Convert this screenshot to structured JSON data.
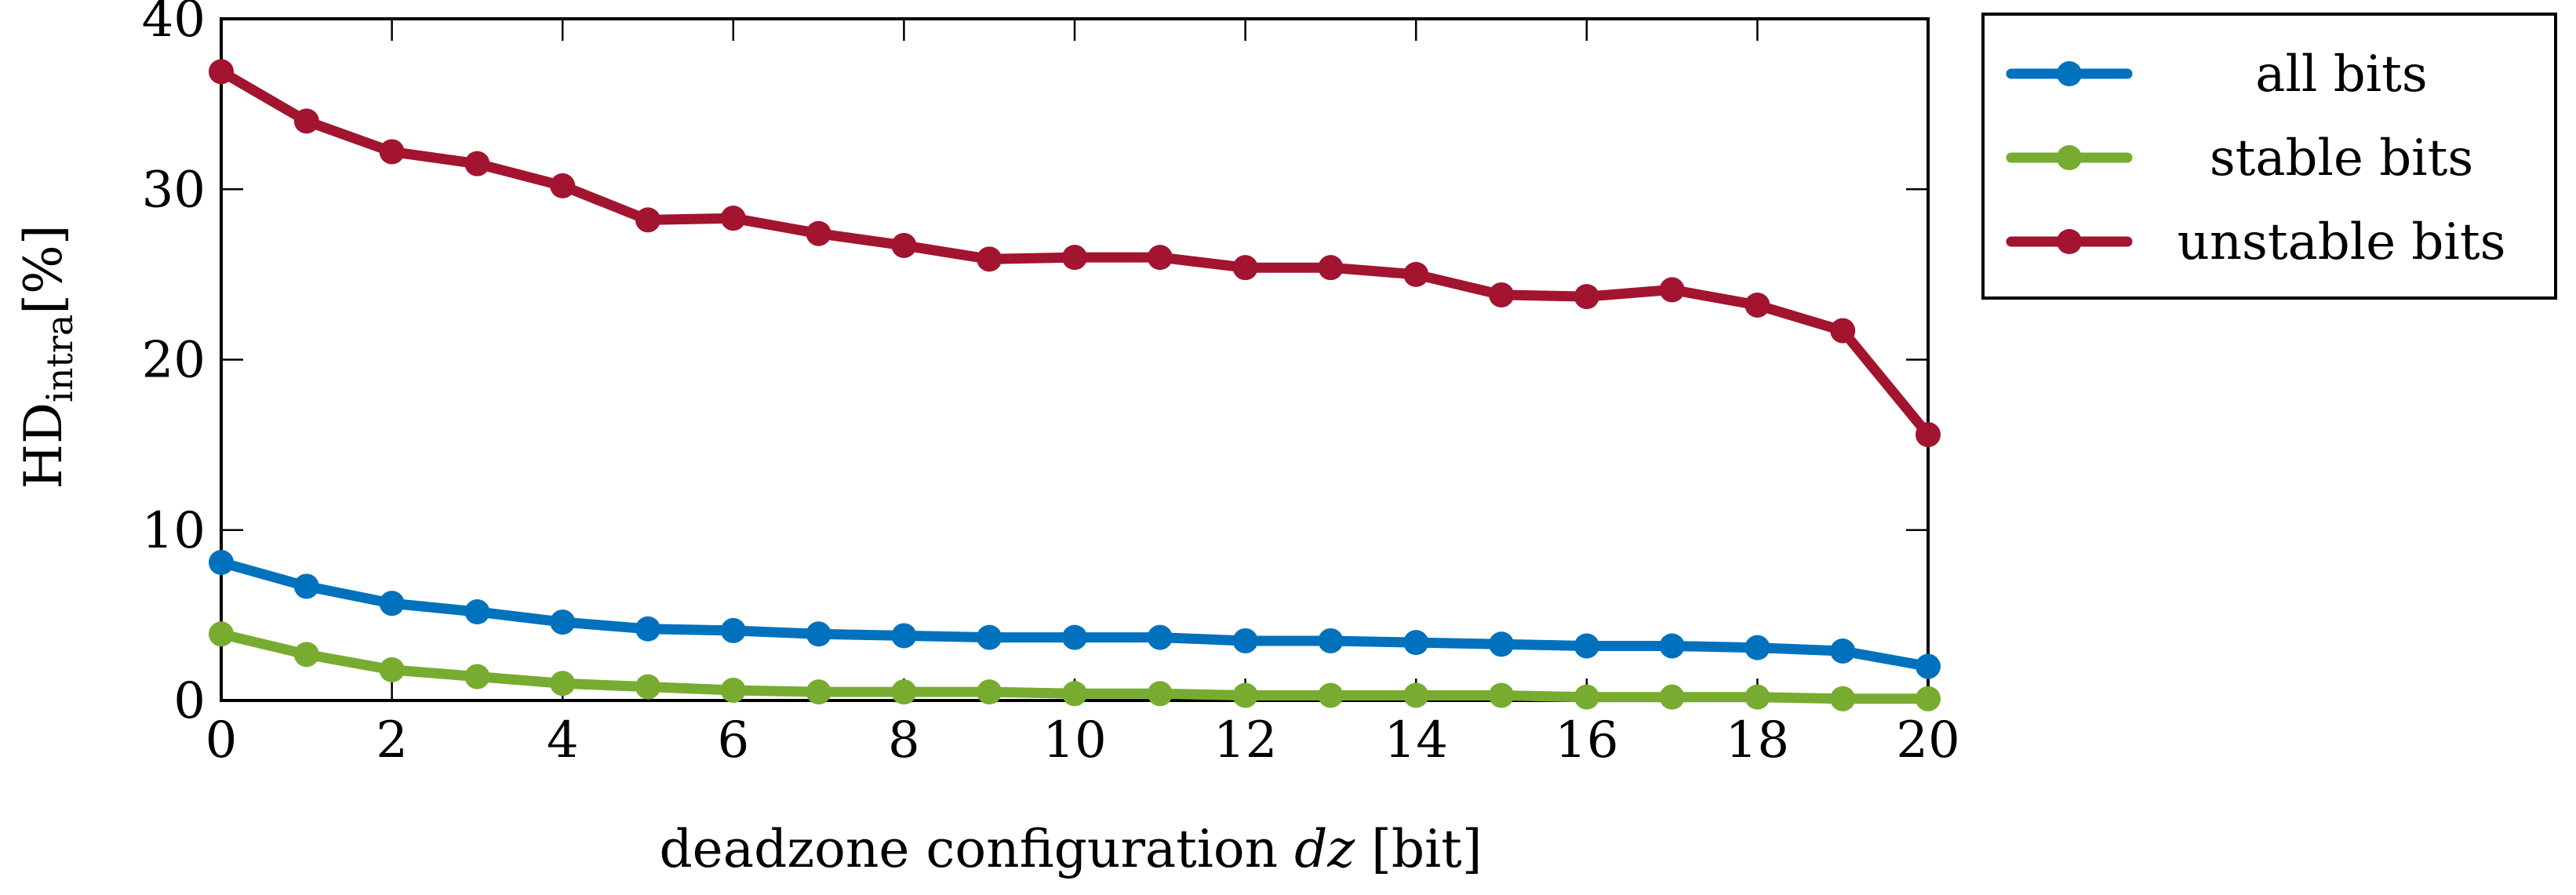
{
  "chart_data": {
    "type": "line",
    "title": "",
    "xlabel": "deadzone configuration",
    "xlabel_var": "dz",
    "xlabel_unit": "[bit]",
    "ylabel_main": "HD",
    "ylabel_sub": "intra",
    "ylabel_unit": "[%]",
    "xlim": [
      0,
      20
    ],
    "ylim": [
      0,
      40
    ],
    "xticks": [
      0,
      2,
      4,
      6,
      8,
      10,
      12,
      14,
      16,
      18,
      20
    ],
    "yticks": [
      0,
      10,
      20,
      30,
      40
    ],
    "grid": false,
    "legend_position": "outside-right",
    "x": [
      0,
      1,
      2,
      3,
      4,
      5,
      6,
      7,
      8,
      9,
      10,
      11,
      12,
      13,
      14,
      15,
      16,
      17,
      18,
      19,
      20
    ],
    "series": [
      {
        "name": "all bits",
        "color": "#0072BD",
        "values": [
          8.1,
          6.7,
          5.7,
          5.2,
          4.6,
          4.2,
          4.1,
          3.9,
          3.8,
          3.7,
          3.7,
          3.7,
          3.5,
          3.5,
          3.4,
          3.3,
          3.2,
          3.2,
          3.1,
          2.9,
          2.0
        ]
      },
      {
        "name": "stable bits",
        "color": "#77AC30",
        "values": [
          3.9,
          2.7,
          1.8,
          1.4,
          1.0,
          0.8,
          0.6,
          0.5,
          0.5,
          0.5,
          0.4,
          0.4,
          0.3,
          0.3,
          0.3,
          0.3,
          0.2,
          0.2,
          0.2,
          0.1,
          0.1
        ]
      },
      {
        "name": "unstable bits",
        "color": "#A2142F",
        "values": [
          36.9,
          34.0,
          32.2,
          31.5,
          30.2,
          28.2,
          28.3,
          27.4,
          26.7,
          25.9,
          26.0,
          26.0,
          25.4,
          25.4,
          25.0,
          23.8,
          23.7,
          24.1,
          23.2,
          21.7,
          15.6
        ]
      }
    ]
  }
}
